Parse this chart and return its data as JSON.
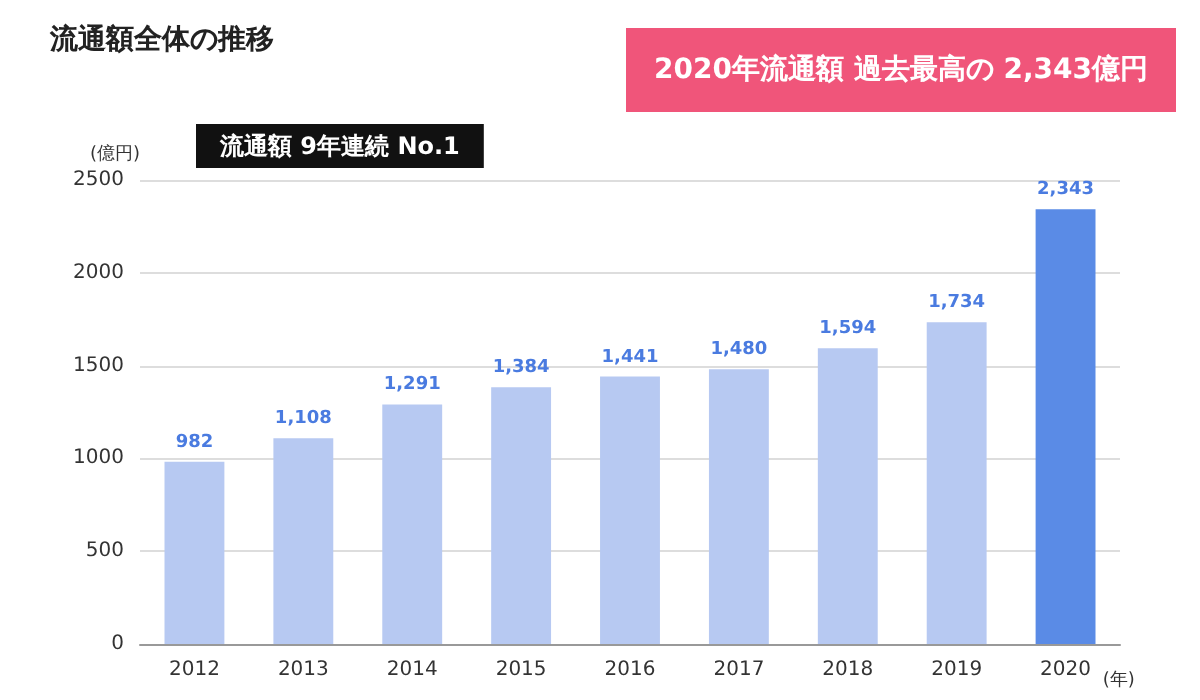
{
  "chart_data": {
    "type": "bar",
    "title": "流通額全体の推移",
    "ylabel": "(億円)",
    "xlabel": "(年)",
    "categories": [
      "2012",
      "2013",
      "2014",
      "2015",
      "2016",
      "2017",
      "2018",
      "2019",
      "2020"
    ],
    "values": [
      982,
      1108,
      1291,
      1384,
      1441,
      1480,
      1594,
      1734,
      2343
    ],
    "colors": [
      "#b7c9f2",
      "#b7c9f2",
      "#b7c9f2",
      "#b7c9f2",
      "#b7c9f2",
      "#b7c9f2",
      "#b7c9f2",
      "#b7c9f2",
      "#5a8be6"
    ],
    "value_labels": [
      "982",
      "1,108",
      "1,291",
      "1,384",
      "1,441",
      "1,480",
      "1,594",
      "1,734",
      "2,343"
    ],
    "ylim": [
      0,
      2500
    ],
    "yticks": [
      0,
      500,
      1000,
      1500,
      2000,
      2500
    ],
    "grid": "y",
    "annotations": [
      "流通額 9年連続 No.1",
      "2020年流通額 過去最高の 2,343億円"
    ]
  }
}
